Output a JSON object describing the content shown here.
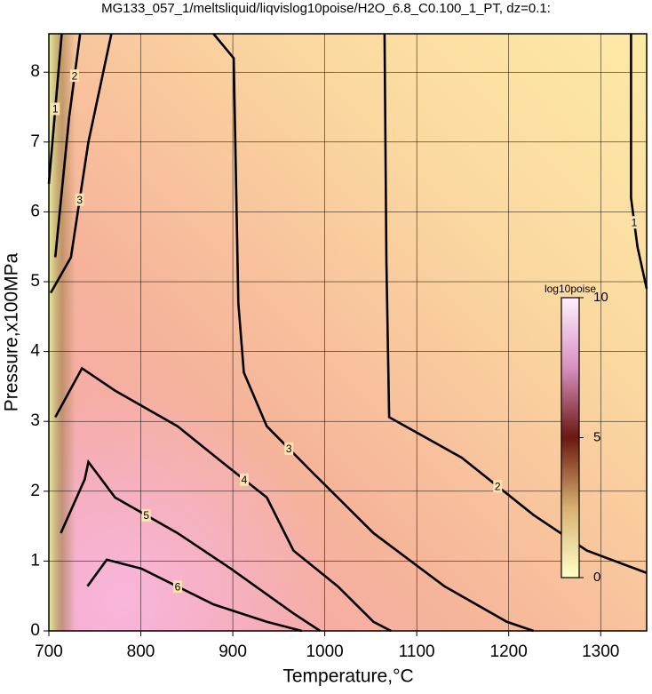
{
  "chart_data": {
    "type": "contour",
    "title": "MG133_057_1/meltsliquid/liqvislog10poise/H2O_6.8_C0.100_1_PT, dz=0.1:",
    "x_label": "Temperature,°C",
    "y_label": "Pressure,x100MPa",
    "xlim": [
      700,
      1350
    ],
    "ylim": [
      0,
      8.55
    ],
    "xticks": [
      700,
      800,
      900,
      1000,
      1100,
      1200,
      1300
    ],
    "yticks": [
      0,
      1,
      2,
      3,
      4,
      5,
      6,
      7,
      8
    ],
    "grid": true,
    "contours": [
      {
        "level": 1,
        "x": [
          700,
          714
        ],
        "y": [
          6.4,
          8.55
        ]
      },
      {
        "level": 1,
        "x": [
          1333,
          1333,
          1340,
          1350
        ],
        "y": [
          8.55,
          6.2,
          5.5,
          4.9
        ]
      },
      {
        "level": 2,
        "x": [
          707,
          722,
          734
        ],
        "y": [
          5.35,
          7.35,
          8.55
        ]
      },
      {
        "level": 2,
        "x": [
          1065,
          1067,
          1070,
          1149,
          1227,
          1285,
          1350
        ],
        "y": [
          8.55,
          5.3,
          3.06,
          2.48,
          1.66,
          1.15,
          0.83
        ]
      },
      {
        "level": 3,
        "x": [
          702,
          724,
          743,
          768
        ],
        "y": [
          4.84,
          5.35,
          7.0,
          8.55
        ]
      },
      {
        "level": 3,
        "x": [
          879,
          901,
          906,
          912,
          937,
          985,
          1053,
          1130,
          1198,
          1227
        ],
        "y": [
          8.55,
          8.2,
          4.7,
          3.7,
          2.93,
          2.29,
          1.4,
          0.64,
          0.13,
          0
        ]
      },
      {
        "level": 4,
        "x": [
          707,
          736,
          772,
          840,
          888,
          937,
          966,
          1014,
          1053,
          1072
        ],
        "y": [
          3.06,
          3.76,
          3.44,
          2.93,
          2.42,
          1.91,
          1.15,
          0.64,
          0.13,
          0
        ]
      },
      {
        "level": 5,
        "x": [
          713,
          739,
          743,
          772,
          840,
          898,
          966,
          995
        ],
        "y": [
          1.4,
          2.17,
          2.42,
          1.91,
          1.4,
          0.89,
          0.25,
          0
        ]
      },
      {
        "level": 6,
        "x": [
          742,
          763,
          801,
          879,
          937,
          975
        ],
        "y": [
          0.64,
          1.02,
          0.89,
          0.38,
          0.13,
          0
        ]
      }
    ],
    "colorbar": {
      "label": "log10poise",
      "lim": [
        0,
        10
      ],
      "ticks": [
        0,
        5,
        10
      ]
    }
  }
}
